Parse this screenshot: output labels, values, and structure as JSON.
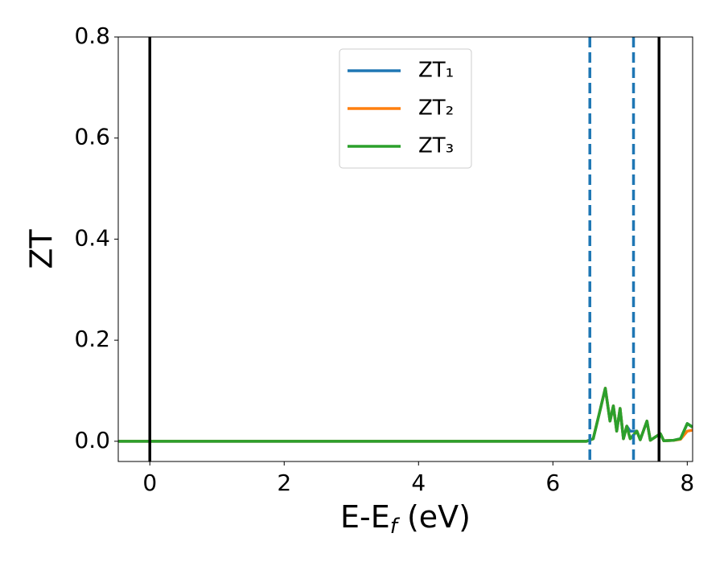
{
  "chart_data": {
    "type": "line",
    "x_label": [
      "E-E",
      "f",
      " (eV)"
    ],
    "y_label": "ZT",
    "x": [
      -0.47,
      6.5,
      6.6,
      6.7,
      6.78,
      6.85,
      6.9,
      6.95,
      7.0,
      7.05,
      7.1,
      7.15,
      7.25,
      7.3,
      7.4,
      7.45,
      7.6,
      7.65,
      7.8,
      7.9,
      8.0,
      8.08
    ],
    "series": [
      {
        "name": "ZT₁",
        "color": "#1f77b4",
        "values": [
          0,
          0,
          0.005,
          0.06,
          0.105,
          0.04,
          0.07,
          0.02,
          0.065,
          0.005,
          0.03,
          0.02,
          0.02,
          0.003,
          0.04,
          0.002,
          0.015,
          0.001,
          0.002,
          0.005,
          0.035,
          0.028
        ]
      },
      {
        "name": "ZT₂",
        "color": "#ff7f0e",
        "values": [
          0,
          0,
          0.005,
          0.06,
          0.105,
          0.04,
          0.07,
          0.02,
          0.065,
          0.005,
          0.03,
          0.005,
          0.02,
          0.003,
          0.04,
          0.002,
          0.015,
          0.001,
          0.002,
          0.004,
          0.02,
          0.022
        ]
      },
      {
        "name": "ZT₃",
        "color": "#2ca02c",
        "values": [
          0,
          0,
          0.005,
          0.06,
          0.105,
          0.04,
          0.07,
          0.02,
          0.065,
          0.005,
          0.03,
          0.005,
          0.02,
          0.003,
          0.04,
          0.002,
          0.015,
          0.001,
          0.002,
          0.005,
          0.035,
          0.028
        ]
      }
    ],
    "vlines": [
      {
        "x": 0,
        "color": "#000000",
        "style": "solid"
      },
      {
        "x": 6.55,
        "color": "#1f77b4",
        "style": "dashed"
      },
      {
        "x": 7.2,
        "color": "#1f77b4",
        "style": "dashed"
      },
      {
        "x": 7.58,
        "color": "#000000",
        "style": "solid"
      }
    ],
    "xlim": [
      -0.47,
      8.08
    ],
    "ylim": [
      -0.04,
      0.8
    ],
    "xticks": [
      0,
      2,
      4,
      6,
      8
    ],
    "yticks": [
      {
        "value": 0,
        "label": "0.0"
      },
      0.2,
      0.4,
      0.6,
      0.8
    ],
    "legend": "upper center"
  }
}
